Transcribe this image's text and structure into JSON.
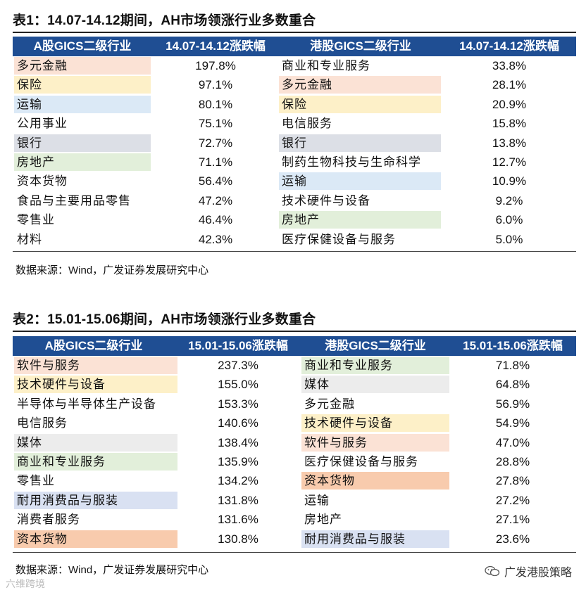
{
  "table1": {
    "title": "表1：14.07-14.12期间，AH市场领涨行业多数重合",
    "headers": [
      "A股GICS二级行业",
      "14.07-14.12涨跌幅",
      "港股GICS二级行业",
      "14.07-14.12涨跌幅"
    ],
    "rows": [
      {
        "a": "多元金融",
        "av": "197.8%",
        "h": "商业和专业服务",
        "hv": "33.8%",
        "ac": "#fbe2d5",
        "hc": ""
      },
      {
        "a": "保险",
        "av": "97.1%",
        "h": "多元金融",
        "hv": "28.1%",
        "ac": "#fdf0c8",
        "hc": "#fbe2d5"
      },
      {
        "a": "运输",
        "av": "80.1%",
        "h": "保险",
        "hv": "20.9%",
        "ac": "#dbe9f6",
        "hc": "#fdf0c8"
      },
      {
        "a": "公用事业",
        "av": "75.1%",
        "h": "电信服务",
        "hv": "15.8%",
        "ac": "",
        "hc": ""
      },
      {
        "a": "银行",
        "av": "72.7%",
        "h": "银行",
        "hv": "13.8%",
        "ac": "#dcdfe6",
        "hc": "#dcdfe6"
      },
      {
        "a": "房地产",
        "av": "71.1%",
        "h": "制药生物科技与生命科学",
        "hv": "12.7%",
        "ac": "#e2efda",
        "hc": ""
      },
      {
        "a": "资本货物",
        "av": "56.4%",
        "h": "运输",
        "hv": "10.9%",
        "ac": "",
        "hc": "#dbe9f6"
      },
      {
        "a": "食品与主要用品零售",
        "av": "47.2%",
        "h": "技术硬件与设备",
        "hv": "9.2%",
        "ac": "",
        "hc": ""
      },
      {
        "a": "零售业",
        "av": "46.4%",
        "h": "房地产",
        "hv": "6.0%",
        "ac": "",
        "hc": "#e2efda"
      },
      {
        "a": "材料",
        "av": "42.3%",
        "h": "医疗保健设备与服务",
        "hv": "5.0%",
        "ac": "",
        "hc": ""
      }
    ],
    "source": "数据来源：Wind，广发证券发展研究中心"
  },
  "table2": {
    "title": "表2：15.01-15.06期间，AH市场领涨行业多数重合",
    "headers": [
      "A股GICS二级行业",
      "15.01-15.06涨跌幅",
      "港股GICS二级行业",
      "15.01-15.06涨跌幅"
    ],
    "rows": [
      {
        "a": "软件与服务",
        "av": "237.3%",
        "h": "商业和专业服务",
        "hv": "71.8%",
        "ac": "#fbe2d5",
        "hc": "#e2efda"
      },
      {
        "a": "技术硬件与设备",
        "av": "155.0%",
        "h": "媒体",
        "hv": "64.8%",
        "ac": "#fdf0c8",
        "hc": "#ececec"
      },
      {
        "a": "半导体与半导体生产设备",
        "av": "153.3%",
        "h": "多元金融",
        "hv": "56.9%",
        "ac": "",
        "hc": ""
      },
      {
        "a": "电信服务",
        "av": "140.6%",
        "h": "技术硬件与设备",
        "hv": "54.9%",
        "ac": "",
        "hc": "#fdf0c8"
      },
      {
        "a": "媒体",
        "av": "138.4%",
        "h": "软件与服务",
        "hv": "47.0%",
        "ac": "#ececec",
        "hc": "#fbe2d5"
      },
      {
        "a": "商业和专业服务",
        "av": "135.9%",
        "h": "医疗保健设备与服务",
        "hv": "28.8%",
        "ac": "#e2efda",
        "hc": ""
      },
      {
        "a": "零售业",
        "av": "134.2%",
        "h": "资本货物",
        "hv": "27.8%",
        "ac": "",
        "hc": "#f8cbad"
      },
      {
        "a": "耐用消费品与服装",
        "av": "131.8%",
        "h": "运输",
        "hv": "27.2%",
        "ac": "#d9e1f2",
        "hc": ""
      },
      {
        "a": "消费者服务",
        "av": "131.6%",
        "h": "房地产",
        "hv": "27.1%",
        "ac": "",
        "hc": ""
      },
      {
        "a": "资本货物",
        "av": "130.8%",
        "h": "耐用消费品与服装",
        "hv": "23.6%",
        "ac": "#f8cbad",
        "hc": "#d9e1f2"
      }
    ],
    "source": "数据来源：Wind，广发证券发展研究中心"
  },
  "brand": {
    "name": "广发港股策略",
    "icon": "wechat-icon"
  },
  "watermark": "六维跨境"
}
